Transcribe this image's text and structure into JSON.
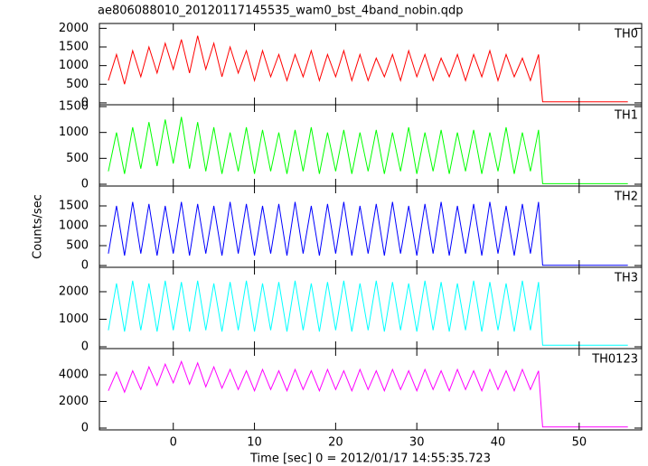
{
  "chart_data": [
    {
      "type": "line",
      "title": "ae806088010_20120117145535_wam0_bst_4band_nobin.qdp",
      "x": [
        -8,
        -7,
        -6,
        -5,
        -4,
        -3,
        -2,
        -1,
        0,
        1,
        2,
        3,
        4,
        5,
        6,
        7,
        8,
        9,
        10,
        11,
        12,
        13,
        14,
        15,
        16,
        17,
        18,
        19,
        20,
        21,
        22,
        23,
        24,
        25,
        26,
        27,
        28,
        29,
        30,
        31,
        32,
        33,
        34,
        35,
        36,
        37,
        38,
        39,
        40,
        41,
        42,
        43,
        44,
        45,
        45.5,
        56
      ],
      "series": [
        {
          "name": "TH0",
          "color": "#ff0000",
          "values": [
            600,
            1300,
            500,
            1400,
            700,
            1500,
            800,
            1600,
            900,
            1700,
            800,
            1800,
            900,
            1600,
            700,
            1500,
            800,
            1400,
            600,
            1400,
            700,
            1300,
            600,
            1300,
            700,
            1400,
            600,
            1300,
            700,
            1400,
            600,
            1300,
            600,
            1200,
            700,
            1300,
            600,
            1400,
            700,
            1300,
            600,
            1200,
            700,
            1300,
            600,
            1300,
            700,
            1400,
            600,
            1300,
            700,
            1200,
            600,
            1300,
            30,
            30
          ]
        }
      ],
      "ylim": [
        -50,
        2130
      ],
      "yticks": [
        0,
        500,
        1000,
        1500,
        2000
      ]
    },
    {
      "type": "line",
      "x": [
        -8,
        -7,
        -6,
        -5,
        -4,
        -3,
        -2,
        -1,
        0,
        1,
        2,
        3,
        4,
        5,
        6,
        7,
        8,
        9,
        10,
        11,
        12,
        13,
        14,
        15,
        16,
        17,
        18,
        19,
        20,
        21,
        22,
        23,
        24,
        25,
        26,
        27,
        28,
        29,
        30,
        31,
        32,
        33,
        34,
        35,
        36,
        37,
        38,
        39,
        40,
        41,
        42,
        43,
        44,
        45,
        45.5,
        56
      ],
      "series": [
        {
          "name": "TH1",
          "color": "#00ff00",
          "values": [
            250,
            1000,
            200,
            1100,
            300,
            1200,
            350,
            1250,
            400,
            1300,
            300,
            1200,
            250,
            1100,
            200,
            1000,
            250,
            1100,
            200,
            1050,
            250,
            1000,
            200,
            1050,
            250,
            1100,
            200,
            1000,
            250,
            1050,
            200,
            1000,
            250,
            1050,
            200,
            1000,
            250,
            1100,
            200,
            1000,
            250,
            1050,
            200,
            1000,
            250,
            1050,
            200,
            1000,
            250,
            1100,
            200,
            1000,
            250,
            1050,
            10,
            10
          ]
        }
      ],
      "ylim": [
        -35,
        1535
      ],
      "yticks": [
        0,
        500,
        1000,
        1500
      ]
    },
    {
      "type": "line",
      "ylabel": "Counts/sec",
      "x": [
        -8,
        -7,
        -6,
        -5,
        -4,
        -3,
        -2,
        -1,
        0,
        1,
        2,
        3,
        4,
        5,
        6,
        7,
        8,
        9,
        10,
        11,
        12,
        13,
        14,
        15,
        16,
        17,
        18,
        19,
        20,
        21,
        22,
        23,
        24,
        25,
        26,
        27,
        28,
        29,
        30,
        31,
        32,
        33,
        34,
        35,
        36,
        37,
        38,
        39,
        40,
        41,
        42,
        43,
        44,
        45,
        45.5,
        56
      ],
      "series": [
        {
          "name": "TH2",
          "color": "#0000ff",
          "values": [
            300,
            1500,
            250,
            1600,
            300,
            1550,
            250,
            1500,
            300,
            1600,
            250,
            1550,
            300,
            1500,
            250,
            1600,
            300,
            1550,
            250,
            1500,
            300,
            1550,
            250,
            1600,
            300,
            1500,
            250,
            1550,
            300,
            1600,
            250,
            1500,
            300,
            1550,
            250,
            1600,
            300,
            1500,
            250,
            1550,
            300,
            1600,
            250,
            1500,
            300,
            1550,
            250,
            1600,
            300,
            1500,
            250,
            1550,
            300,
            1600,
            5,
            5
          ]
        }
      ],
      "ylim": [
        -45,
        2000
      ],
      "yticks": [
        0,
        500,
        1000,
        1500
      ]
    },
    {
      "type": "line",
      "x": [
        -8,
        -7,
        -6,
        -5,
        -4,
        -3,
        -2,
        -1,
        0,
        1,
        2,
        3,
        4,
        5,
        6,
        7,
        8,
        9,
        10,
        11,
        12,
        13,
        14,
        15,
        16,
        17,
        18,
        19,
        20,
        21,
        22,
        23,
        24,
        25,
        26,
        27,
        28,
        29,
        30,
        31,
        32,
        33,
        34,
        35,
        36,
        37,
        38,
        39,
        40,
        41,
        42,
        43,
        44,
        45,
        45.5,
        56
      ],
      "series": [
        {
          "name": "TH3",
          "color": "#00ffff",
          "values": [
            600,
            2300,
            550,
            2400,
            600,
            2300,
            550,
            2400,
            600,
            2350,
            550,
            2400,
            600,
            2300,
            550,
            2350,
            600,
            2400,
            550,
            2300,
            600,
            2350,
            550,
            2400,
            600,
            2300,
            550,
            2350,
            600,
            2400,
            550,
            2300,
            600,
            2400,
            550,
            2350,
            600,
            2300,
            550,
            2400,
            600,
            2350,
            550,
            2300,
            600,
            2400,
            550,
            2350,
            600,
            2300,
            550,
            2400,
            600,
            2350,
            60,
            60
          ]
        }
      ],
      "ylim": [
        -65,
        2885
      ],
      "yticks": [
        0,
        1000,
        2000
      ]
    },
    {
      "type": "line",
      "xlabel": "Time [sec] 0 = 2012/01/17 14:55:35.723",
      "x": [
        -8,
        -7,
        -6,
        -5,
        -4,
        -3,
        -2,
        -1,
        0,
        1,
        2,
        3,
        4,
        5,
        6,
        7,
        8,
        9,
        10,
        11,
        12,
        13,
        14,
        15,
        16,
        17,
        18,
        19,
        20,
        21,
        22,
        23,
        24,
        25,
        26,
        27,
        28,
        29,
        30,
        31,
        32,
        33,
        34,
        35,
        36,
        37,
        38,
        39,
        40,
        41,
        42,
        43,
        44,
        45,
        45.5,
        56
      ],
      "series": [
        {
          "name": "TH0123",
          "color": "#ff00ff",
          "values": [
            2800,
            4200,
            2700,
            4300,
            2900,
            4600,
            3200,
            4800,
            3400,
            5000,
            3300,
            4900,
            3100,
            4600,
            3000,
            4400,
            2900,
            4300,
            2800,
            4400,
            2900,
            4300,
            2800,
            4400,
            2900,
            4300,
            2800,
            4400,
            2900,
            4300,
            2800,
            4400,
            2900,
            4300,
            2800,
            4400,
            2900,
            4300,
            2800,
            4400,
            2900,
            4300,
            2800,
            4400,
            2900,
            4300,
            2800,
            4400,
            2900,
            4300,
            2800,
            4400,
            2900,
            4300,
            80,
            80
          ]
        }
      ],
      "ylim": [
        -135,
        5970
      ],
      "yticks": [
        0,
        2000,
        4000
      ],
      "xlim": [
        -9.1,
        57.7
      ],
      "xticks": [
        0,
        10,
        20,
        30,
        40,
        50
      ]
    }
  ]
}
